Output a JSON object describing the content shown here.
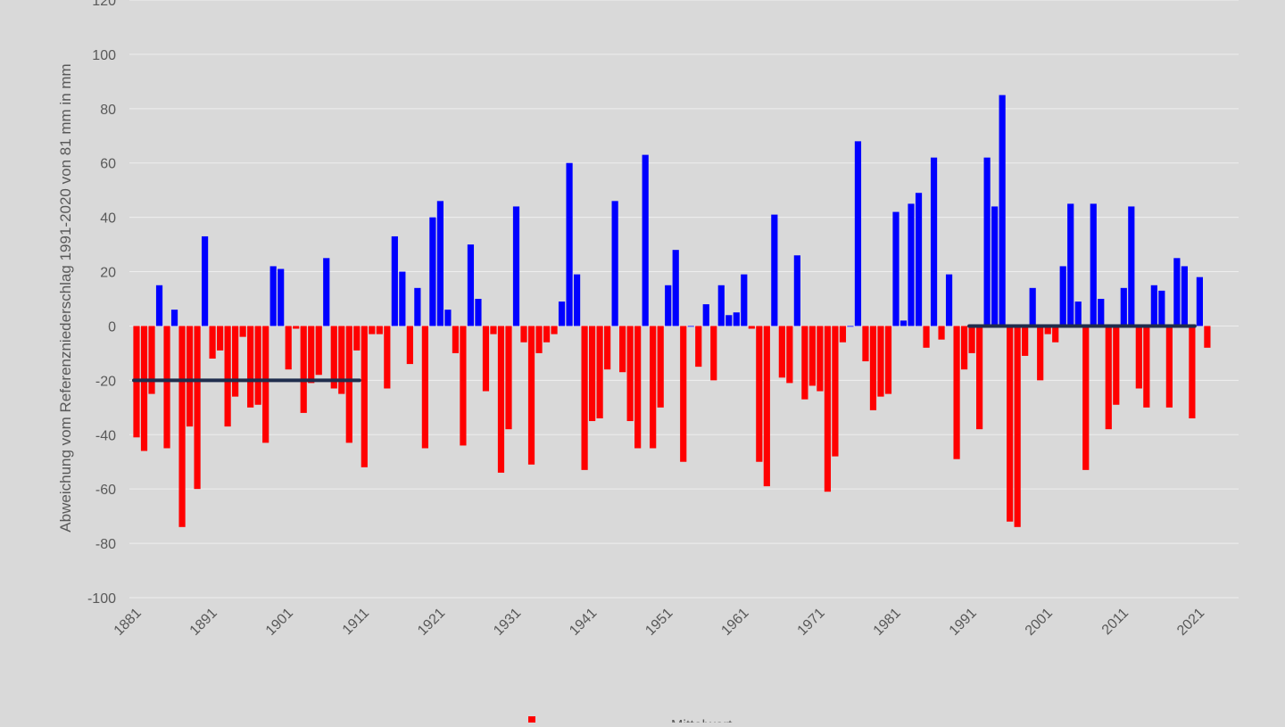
{
  "colors": {
    "background": "#d9d9d9",
    "positive": "#0000ff",
    "negative": "#ff0000",
    "mean_line": "#1f2d4d",
    "grid": "#eeeeee",
    "text": "#595959"
  },
  "chart_data": {
    "type": "bar",
    "title": "",
    "ylabel": "Abweichung vom Referenzniederschlag 1991-2020 von 81 mm in mm",
    "xlabel": "",
    "ylim": [
      -100,
      120
    ],
    "yticks": [
      -100,
      -80,
      -60,
      -40,
      -20,
      0,
      20,
      40,
      60,
      80,
      100,
      120
    ],
    "xtick_labels": [
      "1881",
      "1891",
      "1901",
      "1911",
      "1921",
      "1931",
      "1941",
      "1951",
      "1961",
      "1971",
      "1981",
      "1991",
      "2001",
      "2011",
      "2021"
    ],
    "grid": true,
    "legend": {
      "position": "bottom",
      "entries": [
        "",
        "Mittelwert"
      ]
    },
    "x": [
      1881,
      1882,
      1883,
      1884,
      1885,
      1886,
      1887,
      1888,
      1889,
      1890,
      1891,
      1892,
      1893,
      1894,
      1895,
      1896,
      1897,
      1898,
      1899,
      1900,
      1901,
      1902,
      1903,
      1904,
      1905,
      1906,
      1907,
      1908,
      1909,
      1910,
      1911,
      1912,
      1913,
      1914,
      1915,
      1916,
      1917,
      1918,
      1919,
      1920,
      1921,
      1922,
      1923,
      1924,
      1925,
      1926,
      1927,
      1928,
      1929,
      1930,
      1931,
      1932,
      1933,
      1934,
      1935,
      1936,
      1937,
      1938,
      1939,
      1940,
      1941,
      1942,
      1943,
      1944,
      1945,
      1946,
      1947,
      1948,
      1949,
      1950,
      1951,
      1952,
      1953,
      1954,
      1955,
      1956,
      1957,
      1958,
      1959,
      1960,
      1961,
      1962,
      1963,
      1964,
      1965,
      1966,
      1967,
      1968,
      1969,
      1970,
      1971,
      1972,
      1973,
      1974,
      1975,
      1976,
      1977,
      1978,
      1979,
      1980,
      1981,
      1982,
      1983,
      1984,
      1985,
      1986,
      1987,
      1988,
      1989,
      1990,
      1991,
      1992,
      1993,
      1994,
      1995,
      1996,
      1997,
      1998,
      1999,
      2000,
      2001,
      2002,
      2003,
      2004,
      2005,
      2006,
      2007,
      2008,
      2009,
      2010,
      2011,
      2012,
      2013,
      2014,
      2015,
      2016,
      2017,
      2018,
      2019,
      2020,
      2021,
      2022
    ],
    "values": [
      -41,
      -46,
      -25,
      15,
      -45,
      6,
      -74,
      -37,
      -60,
      33,
      -12,
      -9,
      -37,
      -26,
      -4,
      -30,
      -29,
      -43,
      22,
      21,
      -16,
      -1,
      -32,
      -21,
      -18,
      25,
      -23,
      -25,
      -43,
      -9,
      -52,
      -3,
      -3,
      -23,
      33,
      20,
      -14,
      14,
      -45,
      40,
      46,
      6,
      -10,
      -44,
      30,
      10,
      -24,
      -3,
      -54,
      -38,
      44,
      -6,
      -51,
      -10,
      -6,
      -3,
      9,
      60,
      19,
      -53,
      -35,
      -34,
      -16,
      46,
      -17,
      -35,
      -45,
      63,
      -45,
      -30,
      15,
      28,
      -50,
      0,
      -15,
      8,
      -20,
      15,
      4,
      5,
      19,
      -1,
      -50,
      -59,
      41,
      -19,
      -21,
      26,
      -27,
      -22,
      -24,
      -61,
      -48,
      -6,
      0,
      68,
      -13,
      -31,
      -26,
      -25,
      42,
      2,
      45,
      49,
      -8,
      62,
      -5,
      19,
      -49,
      -16,
      -10,
      -38,
      62,
      44,
      85,
      -72,
      -74,
      -11,
      14,
      -20,
      -3,
      -6,
      22,
      45,
      9,
      -53,
      45,
      10,
      -38,
      -29,
      14,
      44,
      -23,
      -30,
      15,
      13,
      -30,
      25,
      22,
      -34,
      18,
      -8
    ],
    "series": [
      {
        "name": "",
        "type": "bar"
      },
      {
        "name": "Mittelwert",
        "type": "line",
        "segments": [
          {
            "x_start": 1881,
            "x_end": 1910,
            "y": -20
          },
          {
            "x_start": 1991,
            "x_end": 2020,
            "y": 0
          }
        ]
      }
    ]
  }
}
